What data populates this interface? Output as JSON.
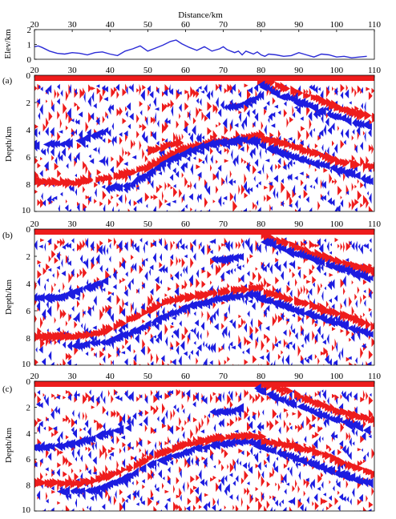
{
  "chart_data": [
    {
      "type": "line",
      "panel": "elevation",
      "title": "Distance/km",
      "xlabel": "Distance/km",
      "ylabel": "Elev/km",
      "xlim": [
        20,
        110
      ],
      "ylim": [
        0,
        2
      ],
      "x_ticks": [
        20,
        30,
        40,
        50,
        60,
        70,
        80,
        90,
        100,
        110
      ],
      "y_ticks": [
        0,
        1,
        2
      ],
      "grid": false,
      "line_color": "#2b2bd6",
      "series": [
        {
          "x": [
            20,
            21,
            22,
            24,
            26,
            28,
            30,
            32,
            34,
            36,
            38,
            40,
            42,
            44,
            46,
            48,
            50,
            52,
            54,
            56,
            57.5,
            59,
            61,
            63,
            65,
            67,
            69,
            70,
            71,
            73,
            74,
            75,
            76,
            77,
            78,
            79,
            80,
            81,
            82,
            84,
            86,
            88,
            90,
            92,
            94,
            96,
            98,
            100,
            102,
            104,
            106,
            108
          ],
          "y": [
            0.85,
            0.9,
            0.8,
            0.55,
            0.4,
            0.35,
            0.45,
            0.4,
            0.3,
            0.45,
            0.5,
            0.35,
            0.25,
            0.55,
            0.7,
            0.9,
            0.55,
            0.75,
            0.95,
            1.2,
            1.3,
            1.05,
            0.8,
            0.6,
            0.85,
            0.55,
            0.7,
            0.85,
            0.65,
            0.45,
            0.55,
            0.3,
            0.55,
            0.45,
            0.35,
            0.5,
            0.3,
            0.2,
            0.35,
            0.3,
            0.2,
            0.25,
            0.45,
            0.3,
            0.15,
            0.35,
            0.3,
            0.15,
            0.2,
            0.1,
            0.15,
            0.2
          ]
        }
      ]
    },
    {
      "type": "heatmap",
      "panel_label": "(a)",
      "ylabel": "Depth/km",
      "xlim": [
        20,
        110
      ],
      "ylim": [
        10,
        0
      ],
      "x_ticks": [
        20,
        30,
        40,
        50,
        60,
        70,
        80,
        90,
        100,
        110
      ],
      "y_ticks": [
        0,
        2,
        4,
        6,
        8,
        10
      ],
      "positive_color": "#ee1c1c",
      "negative_color": "#1c1ce0",
      "reflectors": [
        {
          "polarity": "negative",
          "x": [
            20,
            30,
            36,
            40
          ],
          "y": [
            5.1,
            5.0,
            4.5,
            4.0
          ]
        },
        {
          "polarity": "positive",
          "x": [
            20,
            30,
            40,
            50,
            58,
            66,
            72,
            76,
            80
          ],
          "y": [
            7.8,
            7.9,
            7.5,
            6.7,
            5.5,
            5.0,
            4.8,
            4.6,
            4.3
          ]
        },
        {
          "polarity": "negative",
          "x": [
            40,
            45,
            50,
            56,
            62,
            68,
            74,
            80
          ],
          "y": [
            8.3,
            8.2,
            7.4,
            6.3,
            5.6,
            5.0,
            4.8,
            4.8
          ]
        },
        {
          "polarity": "positive",
          "x": [
            80,
            86,
            92,
            100,
            110
          ],
          "y": [
            4.7,
            5.0,
            5.6,
            6.3,
            6.8
          ]
        },
        {
          "polarity": "negative",
          "x": [
            80,
            86,
            94,
            102,
            110
          ],
          "y": [
            5.0,
            5.7,
            6.4,
            7.0,
            7.8
          ]
        },
        {
          "polarity": "positive",
          "x": [
            79,
            82,
            88,
            95,
            102,
            110
          ],
          "y": [
            0.4,
            0.5,
            1.2,
            1.8,
            2.6,
            3.1
          ]
        },
        {
          "polarity": "negative",
          "x": [
            81,
            86,
            92,
            100,
            110
          ],
          "y": [
            0.7,
            1.5,
            2.1,
            3.0,
            3.8
          ]
        },
        {
          "polarity": "negative",
          "x": [
            72,
            76,
            80
          ],
          "y": [
            2.3,
            2.2,
            1.6
          ]
        },
        {
          "polarity": "positive",
          "x": [
            50,
            54,
            58
          ],
          "y": [
            5.6,
            5.2,
            4.9
          ]
        }
      ],
      "top_band": "positive"
    },
    {
      "type": "heatmap",
      "panel_label": "(b)",
      "ylabel": "Depth/km",
      "xlim": [
        20,
        110
      ],
      "ylim": [
        10,
        0
      ],
      "x_ticks": [
        20,
        30,
        40,
        50,
        60,
        70,
        80,
        90,
        100,
        110
      ],
      "y_ticks": [
        0,
        2,
        4,
        6,
        8,
        10
      ],
      "positive_color": "#ee1c1c",
      "negative_color": "#1c1ce0",
      "reflectors": [
        {
          "polarity": "negative",
          "x": [
            20,
            28,
            34,
            40
          ],
          "y": [
            5.1,
            5.0,
            4.4,
            3.8
          ]
        },
        {
          "polarity": "positive",
          "x": [
            20,
            30,
            38,
            46,
            54,
            62,
            70,
            76,
            80
          ],
          "y": [
            7.9,
            7.9,
            7.5,
            6.5,
            5.4,
            4.9,
            4.6,
            4.4,
            4.3
          ]
        },
        {
          "polarity": "negative",
          "x": [
            30,
            40,
            48,
            56,
            64,
            72,
            80
          ],
          "y": [
            8.6,
            8.3,
            7.4,
            6.3,
            5.5,
            5.0,
            4.8
          ]
        },
        {
          "polarity": "positive",
          "x": [
            80,
            88,
            96,
            104,
            110
          ],
          "y": [
            4.6,
            5.2,
            5.9,
            6.6,
            7.2
          ]
        },
        {
          "polarity": "negative",
          "x": [
            80,
            86,
            94,
            102,
            110
          ],
          "y": [
            5.0,
            5.6,
            6.3,
            7.0,
            7.8
          ]
        },
        {
          "polarity": "positive",
          "x": [
            80,
            86,
            92,
            100,
            110
          ],
          "y": [
            0.5,
            1.0,
            1.7,
            2.4,
            3.1
          ]
        },
        {
          "polarity": "negative",
          "x": [
            82,
            88,
            96,
            104,
            110
          ],
          "y": [
            0.9,
            1.6,
            2.4,
            3.1,
            3.7
          ]
        },
        {
          "polarity": "negative",
          "x": [
            68,
            72,
            76
          ],
          "y": [
            2.2,
            2.2,
            2.0
          ]
        }
      ],
      "top_band": "positive"
    },
    {
      "type": "heatmap",
      "panel_label": "(c)",
      "ylabel": "Depth/km",
      "xlim": [
        20,
        110
      ],
      "ylim": [
        10,
        0
      ],
      "x_ticks": [
        20,
        30,
        40,
        50,
        60,
        70,
        80,
        90,
        100,
        110
      ],
      "y_ticks": [
        0,
        2,
        4,
        6,
        8,
        10
      ],
      "positive_color": "#ee1c1c",
      "negative_color": "#1c1ce0",
      "reflectors": [
        {
          "polarity": "negative",
          "x": [
            20,
            28,
            34,
            40,
            46
          ],
          "y": [
            5.1,
            5.0,
            4.6,
            4.0,
            3.6
          ]
        },
        {
          "polarity": "positive",
          "x": [
            20,
            30,
            38,
            46,
            54,
            62,
            70,
            76,
            80
          ],
          "y": [
            7.8,
            7.9,
            7.4,
            6.5,
            5.4,
            4.7,
            4.3,
            4.2,
            4.3
          ]
        },
        {
          "polarity": "negative",
          "x": [
            28,
            36,
            44,
            52,
            60,
            68,
            76,
            80
          ],
          "y": [
            8.5,
            8.5,
            7.6,
            6.4,
            5.5,
            4.9,
            4.7,
            4.8
          ]
        },
        {
          "polarity": "positive",
          "x": [
            80,
            88,
            96,
            104,
            110
          ],
          "y": [
            4.6,
            5.0,
            5.6,
            6.6,
            7.2
          ]
        },
        {
          "polarity": "negative",
          "x": [
            80,
            86,
            94,
            102,
            110
          ],
          "y": [
            5.0,
            5.6,
            6.3,
            7.2,
            7.9
          ]
        },
        {
          "polarity": "positive",
          "x": [
            80,
            86,
            92,
            100,
            110
          ],
          "y": [
            0.3,
            0.7,
            1.5,
            2.3,
            3.1
          ]
        },
        {
          "polarity": "negative",
          "x": [
            80,
            86,
            94,
            102,
            110
          ],
          "y": [
            0.6,
            1.4,
            2.3,
            3.1,
            3.8
          ]
        },
        {
          "polarity": "negative",
          "x": [
            68,
            72,
            76
          ],
          "y": [
            2.4,
            2.3,
            2.1
          ]
        }
      ],
      "top_band": "positive"
    }
  ]
}
